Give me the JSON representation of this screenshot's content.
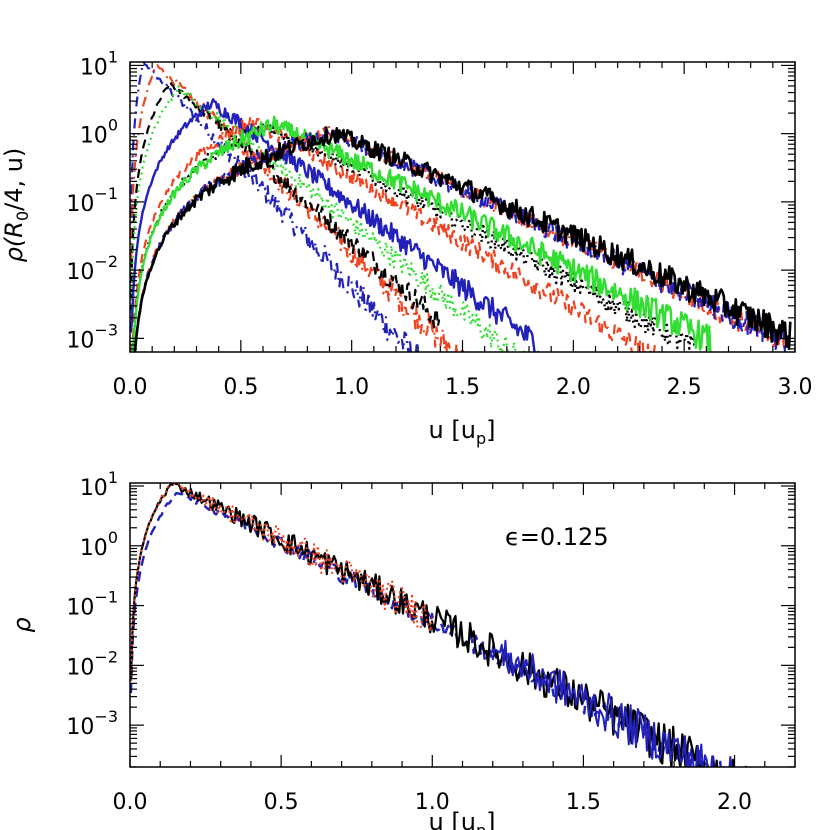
{
  "chart_data": [
    {
      "type": "line",
      "id": "top-panel",
      "xlabel": "u [u",
      "xlabel_sub": "p",
      "xlabel_close": "]",
      "ylabel": "ρ(R",
      "ylabel_sub": "0",
      "ylabel_tail": "/4, u)",
      "xlim": [
        0,
        3
      ],
      "ylim_log10": [
        -3.2,
        1.05
      ],
      "y_scale": "log",
      "x_ticks": [
        {
          "v": 0.0,
          "label": "0.0"
        },
        {
          "v": 0.5,
          "label": "0.5"
        },
        {
          "v": 1.0,
          "label": "1.0"
        },
        {
          "v": 1.5,
          "label": "1.5"
        },
        {
          "v": 2.0,
          "label": "2.0"
        },
        {
          "v": 2.5,
          "label": "2.5"
        },
        {
          "v": 3.0,
          "label": "3.0"
        }
      ],
      "y_ticks": [
        {
          "exp": 1,
          "base": "10",
          "sup": "1"
        },
        {
          "exp": 0,
          "base": "10",
          "sup": "0"
        },
        {
          "exp": -1,
          "base": "10",
          "sup": "−1"
        },
        {
          "exp": -2,
          "base": "10",
          "sup": "−2"
        },
        {
          "exp": -3,
          "base": "10",
          "sup": "−3"
        }
      ],
      "series": [
        {
          "color": "#2222bb",
          "dash": "10,5,2,5",
          "width": 2.2,
          "peak": 0.06,
          "amp": 11,
          "decay": 7.5,
          "rise": 0.03,
          "noise": 0.25,
          "cut": 1.7
        },
        {
          "color": "#ee4422",
          "dash": "10,5,2,5",
          "width": 2.2,
          "peak": 0.12,
          "amp": 10,
          "decay": 6.6,
          "rise": 0.05,
          "noise": 0.25,
          "cut": 1.85
        },
        {
          "color": "#000000",
          "dash": "9,6",
          "width": 2.2,
          "peak": 0.18,
          "amp": 5.5,
          "decay": 6.0,
          "rise": 0.06,
          "noise": 0.22,
          "cut": 1.4
        },
        {
          "color": "#33dd33",
          "dash": "2,4",
          "width": 2.2,
          "peak": 0.22,
          "amp": 4.6,
          "decay": 5.3,
          "rise": 0.07,
          "noise": 0.22,
          "cut": 2.05
        },
        {
          "color": "#2222bb",
          "dash": "",
          "width": 2.4,
          "peak": 0.37,
          "amp": 2.8,
          "decay": 4.9,
          "rise": 0.1,
          "noise": 0.22,
          "cut": 1.85
        },
        {
          "color": "#ee4422",
          "dash": "9,6",
          "width": 2.2,
          "peak": 0.55,
          "amp": 1.5,
          "decay": 3.7,
          "rise": 0.16,
          "noise": 0.2,
          "cut": 2.45
        },
        {
          "color": "#000000",
          "dash": "2,4",
          "width": 2.4,
          "peak": 0.62,
          "amp": 1.3,
          "decay": 3.2,
          "rise": 0.18,
          "noise": 0.2,
          "cut": 2.55
        },
        {
          "color": "#33dd33",
          "dash": "",
          "width": 2.4,
          "peak": 0.65,
          "amp": 1.35,
          "decay": 3.0,
          "rise": 0.18,
          "noise": 0.25,
          "cut": 2.62
        },
        {
          "color": "#ee4422",
          "dash": "10,5,2,5",
          "width": 2.2,
          "peak": 0.9,
          "amp": 1.05,
          "decay": 2.75,
          "rise": 0.25,
          "noise": 0.2,
          "cut": 2.96
        },
        {
          "color": "#2222bb",
          "dash": "9,6",
          "width": 2.2,
          "peak": 0.9,
          "amp": 1.0,
          "decay": 2.7,
          "rise": 0.25,
          "noise": 0.22,
          "cut": 2.97
        },
        {
          "color": "#000000",
          "dash": "",
          "width": 2.6,
          "peak": 0.92,
          "amp": 1.0,
          "decay": 2.6,
          "rise": 0.25,
          "noise": 0.25,
          "cut": 2.98
        }
      ]
    },
    {
      "type": "line",
      "id": "bottom-panel",
      "xlabel": "u [u",
      "xlabel_sub": "p",
      "xlabel_close": "]",
      "ylabel": "ρ",
      "annotation": "ϵ=0.125",
      "xlim": [
        0,
        2.2
      ],
      "ylim_log10": [
        -3.7,
        1.05
      ],
      "y_scale": "log",
      "x_ticks": [
        {
          "v": 0.0,
          "label": "0.0"
        },
        {
          "v": 0.5,
          "label": "0.5"
        },
        {
          "v": 1.0,
          "label": "1.0"
        },
        {
          "v": 1.5,
          "label": "1.5"
        },
        {
          "v": 2.0,
          "label": "2.0"
        }
      ],
      "y_ticks": [
        {
          "exp": 1,
          "base": "10",
          "sup": "1"
        },
        {
          "exp": 0,
          "base": "10",
          "sup": "0"
        },
        {
          "exp": -1,
          "base": "10",
          "sup": "−1"
        },
        {
          "exp": -2,
          "base": "10",
          "sup": "−2"
        },
        {
          "exp": -3,
          "base": "10",
          "sup": "−3"
        }
      ],
      "series": [
        {
          "color": "#2222bb",
          "dash": "10,6",
          "width": 2.4,
          "peak": 0.16,
          "amp": 8,
          "decay": 5.4,
          "rise": 0.06,
          "noise": 0.25,
          "cut": 2.2
        },
        {
          "color": "#000000",
          "dash": "",
          "width": 2.2,
          "peak": 0.14,
          "amp": 11,
          "decay": 5.5,
          "rise": 0.05,
          "noise": 0.4,
          "cut": 2.2
        },
        {
          "color": "#2222bb",
          "dash": "",
          "width": 2.0,
          "peak": 0.14,
          "amp": 11,
          "decay": 5.5,
          "rise": 0.05,
          "noise": 0.4,
          "cut": 2.2,
          "start": 1.2
        },
        {
          "color": "#ee4422",
          "dash": "2,3",
          "width": 2.0,
          "peak": 0.14,
          "amp": 11,
          "decay": 5.5,
          "rise": 0.05,
          "noise": 0.45,
          "cut": 1.0
        }
      ]
    }
  ]
}
